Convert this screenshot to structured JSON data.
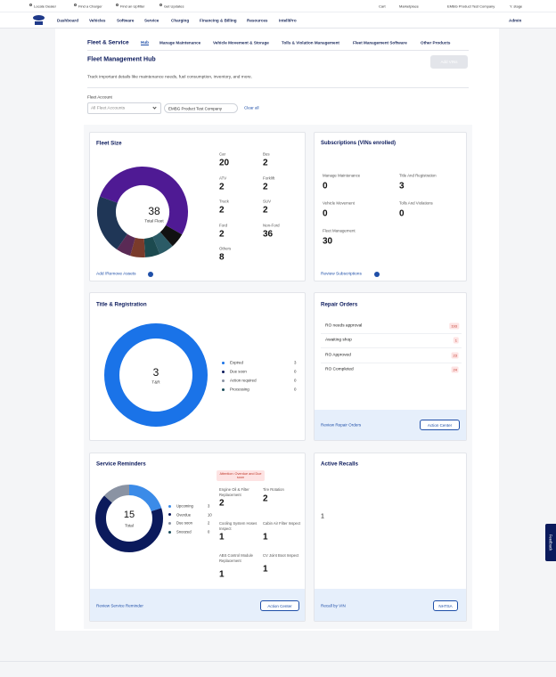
{
  "utility_bar": {
    "left": [
      "Locate Dealer",
      "Find a Charger",
      "Find an Upfitter",
      "Get Updates"
    ],
    "right": [
      "Cart",
      "Marketplace",
      "EMBG Product Test Company",
      "Y. stage"
    ]
  },
  "nav": {
    "items": [
      "Dashboard",
      "Vehicles",
      "Software",
      "Service",
      "Charging",
      "Financing & Billing",
      "Resources",
      "IntelliPro"
    ],
    "admin": "Admin"
  },
  "subnav": {
    "title": "Fleet & Service",
    "items": [
      "Hub",
      "Manage Maintenance",
      "Vehicle Movement & Storage",
      "Tolls & Violation Management",
      "Fleet Management Software",
      "Other Products"
    ],
    "active": 0
  },
  "header": {
    "title": "Fleet Management Hub",
    "button": "Add VINs",
    "description": "Track important details like maintenance needs, fuel consumption, inventory, and more."
  },
  "filter": {
    "label": "Fleet Account",
    "select": "All Fleet Accounts",
    "chip": "EMBG Product Test Company",
    "clear": "Clear all"
  },
  "fleet_size": {
    "title": "Fleet Size",
    "total": 38,
    "total_label": "Total Fleet",
    "stats": [
      {
        "label": "Car",
        "value": 20,
        "color": "#4f1a94"
      },
      {
        "label": "Bus",
        "value": 2,
        "color": "#111111"
      },
      {
        "label": "ATV",
        "value": 2,
        "color": "#2b5b66"
      },
      {
        "label": "Forklift",
        "value": 2,
        "color": "#1c4a4f"
      },
      {
        "label": "Truck",
        "value": 2,
        "color": "#7a3b2b"
      },
      {
        "label": "SUV",
        "value": 2,
        "color": "#5a2a55"
      },
      {
        "label": "Ford",
        "value": 2
      },
      {
        "label": "Non-Ford",
        "value": 36
      },
      {
        "label": "Others",
        "value": 8,
        "color": "#1f3656"
      }
    ],
    "link": "Add /Remove Assets"
  },
  "subscriptions": {
    "title": "Subscriptions (VINs enrolled)",
    "items": [
      {
        "label": "Manage Maintenance",
        "value": 0
      },
      {
        "label": "Title And Registration",
        "value": 3
      },
      {
        "label": "Vehicle Movement",
        "value": 0
      },
      {
        "label": "Tolls And Violations",
        "value": 0
      },
      {
        "label": "Fleet Management",
        "value": 30
      }
    ],
    "link": "Review Subscriptions"
  },
  "title_registration": {
    "title": "Title & Registration",
    "total": 3,
    "total_label": "T&R",
    "legend": [
      {
        "label": "Expired",
        "value": 3,
        "color": "#1a73e8"
      },
      {
        "label": "Due soon",
        "value": 0,
        "color": "#0b1a5c"
      },
      {
        "label": "Action required",
        "value": 0,
        "color": "#8a93a3"
      },
      {
        "label": "Processing",
        "value": 0,
        "color": "#1c4e5c"
      }
    ]
  },
  "repair_orders": {
    "title": "Repair Orders",
    "items": [
      {
        "label": "RO needs approval",
        "value": 193
      },
      {
        "label": "Awaiting shop",
        "value": 1
      },
      {
        "label": "RO Approved",
        "value": 23
      },
      {
        "label": "RO Completed",
        "value": 24
      }
    ],
    "link": "Review Repair Orders",
    "button": "Action Center"
  },
  "service_reminders": {
    "title": "Service Reminders",
    "total": 15,
    "total_label": "Total",
    "legend": [
      {
        "label": "Upcoming",
        "value": 3,
        "color": "#3b8be8"
      },
      {
        "label": "Overdue",
        "value": 10,
        "color": "#0b1a5c"
      },
      {
        "label": "Due soon",
        "value": 2,
        "color": "#8a93a3"
      },
      {
        "label": "Snoozed",
        "value": 0,
        "color": "#1c4e5c"
      }
    ],
    "tag": "Attention: Overdue and Due soon",
    "items": [
      {
        "label": "Engine Oil & Filter Replacement",
        "value": 2
      },
      {
        "label": "Tire Rotation",
        "value": 2
      },
      {
        "label": "Cooling System Hoses Inspect",
        "value": 1
      },
      {
        "label": "Cabin Air Filter Inspect",
        "value": 1
      },
      {
        "label": "ABS Control Module Replacement",
        "value": 1
      },
      {
        "label": "CV Joint Boot Inspect",
        "value": 1
      }
    ],
    "link": "Review Service Reminder",
    "button": "Action Center"
  },
  "active_recalls": {
    "title": "Active Recalls",
    "value": 1,
    "link": "Recall by VIN",
    "button": "NHTSA"
  },
  "feedback": "Feedback"
}
